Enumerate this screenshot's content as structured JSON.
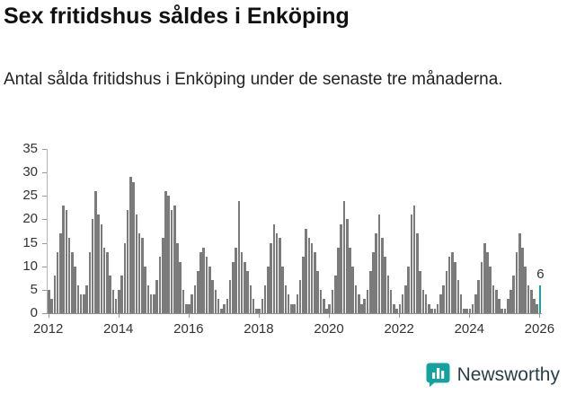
{
  "header": {
    "title": "Sex fritidshus såldes i Enköping",
    "subtitle": "Antal sålda fritidshus i Enköping under de senaste tre månaderna."
  },
  "chart_data": {
    "type": "bar",
    "title": "Sex fritidshus såldes i Enköping",
    "xlabel": "",
    "ylabel": "",
    "start_year": 2012,
    "frequency": "monthly",
    "values": [
      5,
      3,
      8,
      13,
      17,
      23,
      22,
      16,
      13,
      10,
      6,
      4,
      4,
      6,
      13,
      20,
      26,
      21,
      19,
      14,
      13,
      8,
      5,
      3,
      5,
      8,
      15,
      22,
      29,
      28,
      21,
      17,
      16,
      10,
      6,
      4,
      4,
      7,
      12,
      16,
      26,
      25,
      22,
      23,
      15,
      11,
      5,
      2,
      2,
      4,
      6,
      9,
      13,
      14,
      12,
      10,
      7,
      5,
      3,
      1,
      2,
      3,
      7,
      11,
      14,
      24,
      13,
      11,
      9,
      6,
      3,
      1,
      1,
      3,
      6,
      10,
      15,
      19,
      17,
      16,
      10,
      6,
      4,
      2,
      2,
      4,
      7,
      12,
      18,
      16,
      15,
      13,
      9,
      5,
      3,
      1,
      2,
      5,
      8,
      14,
      19,
      24,
      20,
      14,
      10,
      6,
      4,
      2,
      3,
      5,
      9,
      13,
      17,
      21,
      16,
      12,
      8,
      5,
      2,
      1,
      2,
      4,
      6,
      10,
      21,
      23,
      17,
      9,
      5,
      4,
      2,
      1,
      1,
      2,
      4,
      6,
      9,
      12,
      13,
      11,
      7,
      4,
      1,
      1,
      1,
      2,
      4,
      7,
      11,
      15,
      13,
      10,
      6,
      5,
      3,
      1,
      1,
      3,
      5,
      8,
      13,
      17,
      14,
      10,
      6,
      5,
      3,
      2,
      6
    ],
    "last_value_label": "6",
    "y_ticks": [
      0,
      5,
      10,
      15,
      20,
      25,
      30,
      35
    ],
    "ylim": [
      0,
      35
    ],
    "x_tick_years": [
      "2012",
      "2014",
      "2016",
      "2018",
      "2020",
      "2022",
      "2024",
      "2026"
    ],
    "grid": "off",
    "legend": "none",
    "bar_color": "#7b7b7b",
    "highlight_color": "#1aa39f"
  },
  "footer": {
    "brand": "Newsworthy",
    "brand_color": "#14a2a0"
  }
}
